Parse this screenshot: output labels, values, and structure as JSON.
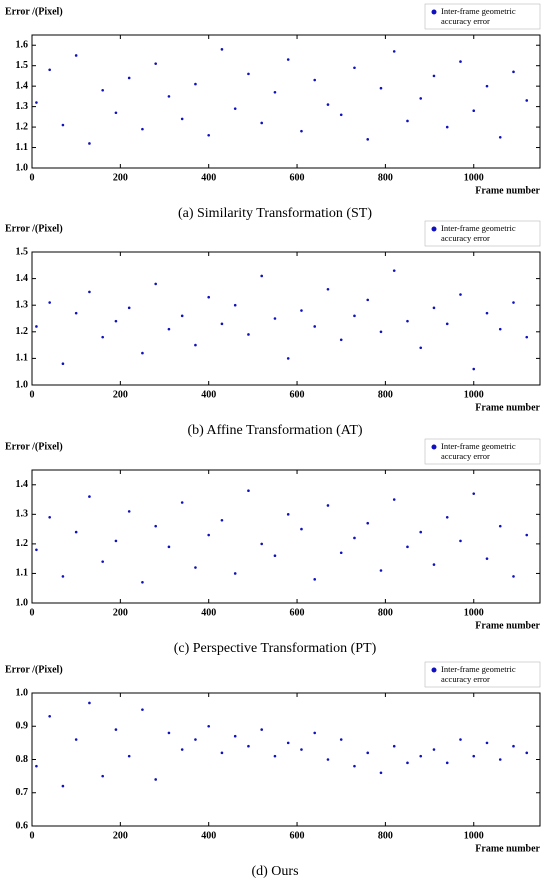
{
  "chart_data": [
    {
      "type": "scatter",
      "ylabel": "Error /(Pixel)",
      "xlabel": "Frame number",
      "caption": "(a) Similarity Transformation (ST)",
      "xlim": [
        0,
        1150
      ],
      "xticks": [
        0,
        200,
        400,
        600,
        800,
        1000
      ],
      "ylim": [
        1.0,
        1.65
      ],
      "yticks": [
        {
          "value": 1.0,
          "label": "1.0"
        },
        1.1,
        1.2,
        1.3,
        1.4,
        1.5,
        1.6
      ],
      "series": [
        {
          "name": "Inter-frame geometric accuracy error",
          "color": "#1010c0",
          "x": [
            10,
            40,
            70,
            100,
            130,
            160,
            190,
            220,
            250,
            280,
            310,
            340,
            370,
            400,
            430,
            460,
            490,
            520,
            550,
            580,
            610,
            640,
            670,
            700,
            730,
            760,
            790,
            820,
            850,
            880,
            910,
            940,
            970,
            1000,
            1030,
            1060,
            1090,
            1120
          ],
          "values": [
            1.32,
            1.48,
            1.21,
            1.55,
            1.12,
            1.38,
            1.27,
            1.44,
            1.19,
            1.51,
            1.35,
            1.24,
            1.41,
            1.16,
            1.58,
            1.29,
            1.46,
            1.22,
            1.37,
            1.53,
            1.18,
            1.43,
            1.31,
            1.26,
            1.49,
            1.14,
            1.39,
            1.57,
            1.23,
            1.34,
            1.45,
            1.2,
            1.52,
            1.28,
            1.4,
            1.15,
            1.47,
            1.33
          ]
        }
      ]
    },
    {
      "type": "scatter",
      "ylabel": "Error /(Pixel)",
      "xlabel": "Frame number",
      "caption": "(b) Affine Transformation (AT)",
      "xlim": [
        0,
        1150
      ],
      "xticks": [
        0,
        200,
        400,
        600,
        800,
        1000
      ],
      "ylim": [
        1.0,
        1.5
      ],
      "yticks": [
        {
          "value": 1.0,
          "label": "1.0"
        },
        1.1,
        1.2,
        1.3,
        1.4,
        1.5
      ],
      "series": [
        {
          "name": "Inter-frame geometric accuracy error",
          "color": "#1010c0",
          "x": [
            10,
            40,
            70,
            100,
            130,
            160,
            190,
            220,
            250,
            280,
            310,
            340,
            370,
            400,
            430,
            460,
            490,
            520,
            550,
            580,
            610,
            640,
            670,
            700,
            730,
            760,
            790,
            820,
            850,
            880,
            910,
            940,
            970,
            1000,
            1030,
            1060,
            1090,
            1120
          ],
          "values": [
            1.22,
            1.31,
            1.08,
            1.27,
            1.35,
            1.18,
            1.24,
            1.29,
            1.12,
            1.38,
            1.21,
            1.26,
            1.15,
            1.33,
            1.23,
            1.3,
            1.19,
            1.41,
            1.25,
            1.1,
            1.28,
            1.22,
            1.36,
            1.17,
            1.26,
            1.32,
            1.2,
            1.43,
            1.24,
            1.14,
            1.29,
            1.23,
            1.34,
            1.06,
            1.27,
            1.21,
            1.31,
            1.18
          ]
        }
      ]
    },
    {
      "type": "scatter",
      "ylabel": "Error /(Pixel)",
      "xlabel": "Frame number",
      "caption": "(c) Perspective Transformation (PT)",
      "xlim": [
        0,
        1150
      ],
      "xticks": [
        0,
        200,
        400,
        600,
        800,
        1000
      ],
      "ylim": [
        1.0,
        1.45
      ],
      "yticks": [
        {
          "value": 1.0,
          "label": "1.0"
        },
        1.1,
        1.2,
        1.3,
        1.4
      ],
      "series": [
        {
          "name": "Inter-frame geometric accuracy error",
          "color": "#1010c0",
          "x": [
            10,
            40,
            70,
            100,
            130,
            160,
            190,
            220,
            250,
            280,
            310,
            340,
            370,
            400,
            430,
            460,
            490,
            520,
            550,
            580,
            610,
            640,
            670,
            700,
            730,
            760,
            790,
            820,
            850,
            880,
            910,
            940,
            970,
            1000,
            1030,
            1060,
            1090,
            1120
          ],
          "values": [
            1.18,
            1.29,
            1.09,
            1.24,
            1.36,
            1.14,
            1.21,
            1.31,
            1.07,
            1.26,
            1.19,
            1.34,
            1.12,
            1.23,
            1.28,
            1.1,
            1.38,
            1.2,
            1.16,
            1.3,
            1.25,
            1.08,
            1.33,
            1.17,
            1.22,
            1.27,
            1.11,
            1.35,
            1.19,
            1.24,
            1.13,
            1.29,
            1.21,
            1.37,
            1.15,
            1.26,
            1.09,
            1.23
          ]
        }
      ]
    },
    {
      "type": "scatter",
      "ylabel": "Error /(Pixel)",
      "xlabel": "Frame number",
      "caption": "(d) Ours",
      "xlim": [
        0,
        1150
      ],
      "xticks": [
        0,
        200,
        400,
        600,
        800,
        1000
      ],
      "ylim": [
        0.6,
        1.0
      ],
      "yticks": [
        0.6,
        0.7,
        0.8,
        0.9,
        {
          "value": 1.0,
          "label": "1.0"
        }
      ],
      "series": [
        {
          "name": "Inter-frame geometric accuracy error",
          "color": "#1010c0",
          "x": [
            10,
            40,
            70,
            100,
            130,
            160,
            190,
            220,
            250,
            280,
            310,
            340,
            370,
            400,
            430,
            460,
            490,
            520,
            550,
            580,
            610,
            640,
            670,
            700,
            730,
            760,
            790,
            820,
            850,
            880,
            910,
            940,
            970,
            1000,
            1030,
            1060,
            1090,
            1120
          ],
          "values": [
            0.78,
            0.93,
            0.72,
            0.86,
            0.97,
            0.75,
            0.89,
            0.81,
            0.95,
            0.74,
            0.88,
            0.83,
            0.86,
            0.9,
            0.82,
            0.87,
            0.84,
            0.89,
            0.81,
            0.85,
            0.83,
            0.88,
            0.8,
            0.86,
            0.78,
            0.82,
            0.76,
            0.84,
            0.79,
            0.81,
            0.83,
            0.79,
            0.86,
            0.81,
            0.85,
            0.8,
            0.84,
            0.82
          ]
        }
      ]
    }
  ]
}
